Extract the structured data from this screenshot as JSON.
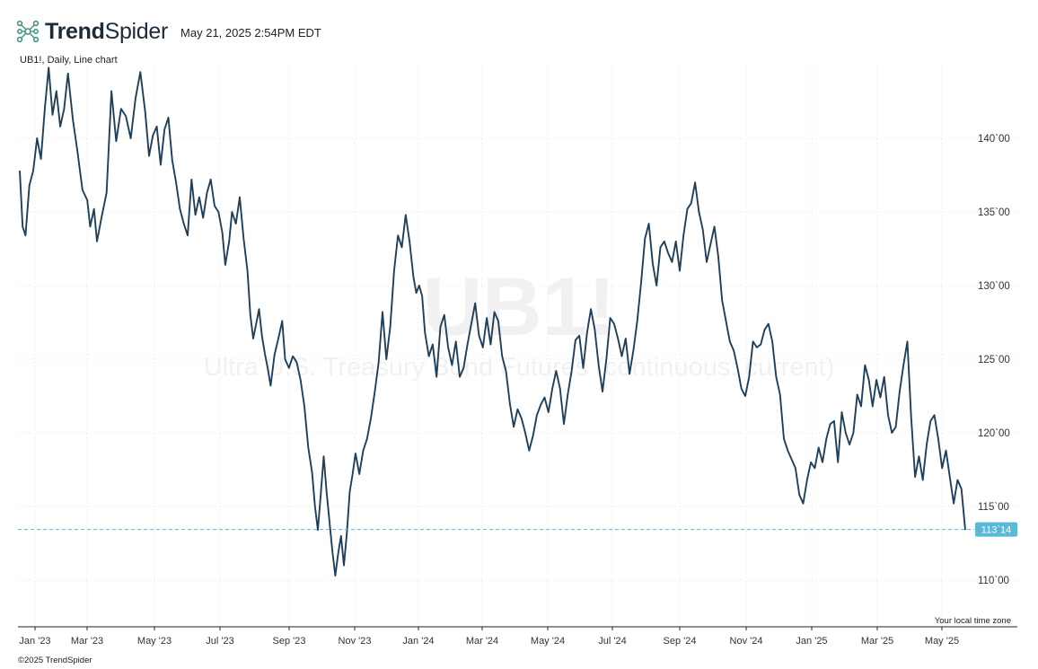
{
  "header": {
    "brand_bold": "Trend",
    "brand_light": "Spider",
    "timestamp": "May 21, 2025 2:54PM EDT",
    "logo_icon": "trendspider-network-icon"
  },
  "subtitle": "UB1!, Daily, Line chart",
  "footer": {
    "copyright": "©2025 TrendSpider",
    "timezone_note": "Your local time zone"
  },
  "watermark": {
    "symbol": "UB1!",
    "description": "Ultra U.S. Treasury Bond Futures (continuous: current)"
  },
  "colors": {
    "line": "#1f3f5b",
    "last_price": "#5bb8d6",
    "grid": "#e6e6e6",
    "axis": "#222222"
  },
  "chart_data": {
    "type": "line",
    "symbol": "UB1!",
    "interval": "Daily",
    "x_tick_labels": [
      "Jan '23",
      "Mar '23",
      "May '23",
      "Jul '23",
      "Sep '23",
      "Nov '23",
      "Jan '24",
      "Mar '24",
      "May '24",
      "Jul '24",
      "Sep '24",
      "Nov '24",
      "Jan '25",
      "Mar '25",
      "May '25"
    ],
    "y_tick_labels": [
      "110`00",
      "115`00",
      "120`00",
      "125`00",
      "130`00",
      "135`00",
      "140`00"
    ],
    "y_tick_values": [
      110,
      115,
      120,
      125,
      130,
      135,
      140
    ],
    "ylim": [
      108,
      146
    ],
    "last_price_label": "113`14",
    "last_price_value": 113.44,
    "series": [
      {
        "values": [
          [
            0.0,
            137.8
          ],
          [
            0.3,
            134.0
          ],
          [
            0.6,
            133.4
          ],
          [
            1.0,
            136.8
          ],
          [
            1.4,
            137.8
          ],
          [
            1.8,
            140.0
          ],
          [
            2.2,
            138.6
          ],
          [
            2.6,
            142.0
          ],
          [
            3.0,
            144.8
          ],
          [
            3.4,
            141.6
          ],
          [
            3.8,
            143.2
          ],
          [
            4.2,
            140.8
          ],
          [
            4.6,
            142.0
          ],
          [
            5.0,
            144.4
          ],
          [
            5.5,
            141.3
          ],
          [
            6.0,
            139.0
          ],
          [
            6.5,
            136.5
          ],
          [
            7.0,
            135.8
          ],
          [
            7.3,
            134.0
          ],
          [
            7.7,
            135.2
          ],
          [
            8.0,
            133.0
          ],
          [
            8.5,
            134.7
          ],
          [
            9.0,
            136.3
          ],
          [
            9.5,
            143.2
          ],
          [
            10.0,
            139.8
          ],
          [
            10.5,
            142.0
          ],
          [
            11.0,
            141.5
          ],
          [
            11.5,
            140.0
          ],
          [
            12.0,
            142.7
          ],
          [
            12.5,
            144.5
          ],
          [
            13.0,
            141.8
          ],
          [
            13.4,
            138.8
          ],
          [
            13.8,
            140.2
          ],
          [
            14.2,
            140.8
          ],
          [
            14.6,
            138.2
          ],
          [
            15.0,
            140.6
          ],
          [
            15.4,
            141.4
          ],
          [
            15.8,
            138.5
          ],
          [
            16.2,
            137.0
          ],
          [
            16.6,
            135.2
          ],
          [
            17.0,
            134.2
          ],
          [
            17.4,
            133.4
          ],
          [
            17.8,
            137.2
          ],
          [
            18.2,
            134.8
          ],
          [
            18.6,
            136.0
          ],
          [
            19.0,
            134.6
          ],
          [
            19.4,
            136.3
          ],
          [
            19.8,
            137.2
          ],
          [
            20.2,
            135.4
          ],
          [
            20.6,
            135.0
          ],
          [
            21.0,
            133.6
          ],
          [
            21.3,
            131.4
          ],
          [
            21.7,
            133.0
          ],
          [
            22.0,
            135.0
          ],
          [
            22.4,
            134.2
          ],
          [
            22.8,
            136.0
          ],
          [
            23.2,
            133.2
          ],
          [
            23.6,
            131.0
          ],
          [
            23.9,
            128.0
          ],
          [
            24.2,
            126.4
          ],
          [
            24.5,
            127.4
          ],
          [
            24.8,
            128.4
          ],
          [
            25.1,
            126.6
          ],
          [
            25.4,
            125.4
          ],
          [
            25.7,
            124.4
          ],
          [
            26.0,
            123.2
          ],
          [
            26.4,
            125.3
          ],
          [
            26.8,
            126.4
          ],
          [
            27.2,
            127.6
          ],
          [
            27.5,
            125.0
          ],
          [
            27.9,
            124.4
          ],
          [
            28.3,
            125.2
          ],
          [
            28.7,
            124.8
          ],
          [
            29.1,
            123.6
          ],
          [
            29.5,
            121.8
          ],
          [
            29.9,
            119.0
          ],
          [
            30.3,
            117.3
          ],
          [
            30.6,
            115.0
          ],
          [
            30.9,
            113.4
          ],
          [
            31.2,
            115.8
          ],
          [
            31.5,
            118.4
          ],
          [
            31.8,
            116.0
          ],
          [
            32.1,
            114.0
          ],
          [
            32.4,
            112.0
          ],
          [
            32.7,
            110.3
          ],
          [
            33.0,
            111.8
          ],
          [
            33.3,
            113.0
          ],
          [
            33.6,
            111.0
          ],
          [
            33.9,
            113.2
          ],
          [
            34.2,
            116.0
          ],
          [
            34.5,
            117.2
          ],
          [
            34.8,
            118.6
          ],
          [
            35.2,
            117.2
          ],
          [
            35.6,
            118.8
          ],
          [
            36.0,
            119.6
          ],
          [
            36.4,
            121.0
          ],
          [
            36.8,
            122.8
          ],
          [
            37.2,
            124.8
          ],
          [
            37.6,
            128.2
          ],
          [
            38.0,
            125.0
          ],
          [
            38.4,
            127.2
          ],
          [
            38.8,
            131.0
          ],
          [
            39.2,
            133.4
          ],
          [
            39.6,
            132.6
          ],
          [
            40.0,
            134.8
          ],
          [
            40.4,
            133.0
          ],
          [
            40.8,
            130.6
          ],
          [
            41.1,
            129.5
          ],
          [
            41.4,
            130.0
          ],
          [
            41.7,
            129.3
          ],
          [
            42.0,
            126.8
          ],
          [
            42.4,
            125.2
          ],
          [
            42.8,
            126.0
          ],
          [
            43.2,
            123.8
          ],
          [
            43.6,
            127.2
          ],
          [
            44.0,
            128.0
          ],
          [
            44.4,
            125.8
          ],
          [
            44.8,
            124.6
          ],
          [
            45.2,
            126.2
          ],
          [
            45.6,
            123.8
          ],
          [
            46.0,
            124.4
          ],
          [
            46.4,
            126.0
          ],
          [
            46.8,
            127.4
          ],
          [
            47.2,
            128.8
          ],
          [
            47.6,
            126.6
          ],
          [
            48.0,
            125.8
          ],
          [
            48.4,
            127.8
          ],
          [
            48.8,
            126.0
          ],
          [
            49.2,
            128.2
          ],
          [
            49.6,
            127.6
          ],
          [
            50.0,
            125.2
          ],
          [
            50.4,
            124.2
          ],
          [
            50.8,
            122.0
          ],
          [
            51.2,
            120.4
          ],
          [
            51.6,
            121.6
          ],
          [
            52.0,
            121.0
          ],
          [
            52.4,
            120.0
          ],
          [
            52.8,
            118.8
          ],
          [
            53.2,
            119.8
          ],
          [
            53.6,
            121.2
          ],
          [
            54.0,
            121.9
          ],
          [
            54.4,
            122.4
          ],
          [
            54.8,
            121.4
          ],
          [
            55.2,
            123.0
          ],
          [
            55.6,
            124.2
          ],
          [
            56.0,
            123.0
          ],
          [
            56.4,
            120.6
          ],
          [
            56.8,
            122.6
          ],
          [
            57.2,
            124.2
          ],
          [
            57.6,
            126.3
          ],
          [
            58.0,
            126.6
          ],
          [
            58.4,
            124.4
          ],
          [
            58.8,
            126.8
          ],
          [
            59.2,
            128.4
          ],
          [
            59.6,
            127.0
          ],
          [
            60.0,
            124.6
          ],
          [
            60.4,
            122.8
          ],
          [
            60.8,
            125.0
          ],
          [
            61.2,
            127.8
          ],
          [
            61.6,
            127.4
          ],
          [
            62.0,
            126.4
          ],
          [
            62.4,
            125.2
          ],
          [
            62.8,
            126.4
          ],
          [
            63.2,
            124.0
          ],
          [
            63.6,
            125.6
          ],
          [
            64.0,
            127.6
          ],
          [
            64.4,
            130.2
          ],
          [
            64.8,
            133.2
          ],
          [
            65.2,
            134.2
          ],
          [
            65.6,
            131.5
          ],
          [
            66.0,
            130.0
          ],
          [
            66.4,
            132.6
          ],
          [
            66.8,
            133.0
          ],
          [
            67.2,
            132.2
          ],
          [
            67.6,
            131.6
          ],
          [
            68.0,
            133.0
          ],
          [
            68.4,
            131.0
          ],
          [
            68.8,
            133.4
          ],
          [
            69.2,
            135.2
          ],
          [
            69.6,
            135.6
          ],
          [
            70.0,
            137.0
          ],
          [
            70.4,
            135.0
          ],
          [
            70.8,
            133.8
          ],
          [
            71.2,
            131.6
          ],
          [
            71.6,
            132.8
          ],
          [
            72.0,
            134.0
          ],
          [
            72.4,
            132.0
          ],
          [
            72.8,
            129.0
          ],
          [
            73.2,
            127.6
          ],
          [
            73.6,
            126.2
          ],
          [
            74.0,
            125.6
          ],
          [
            74.4,
            124.4
          ],
          [
            74.8,
            123.0
          ],
          [
            75.2,
            122.5
          ],
          [
            75.6,
            123.8
          ],
          [
            76.0,
            126.2
          ],
          [
            76.4,
            125.8
          ],
          [
            76.8,
            126.0
          ],
          [
            77.2,
            127.0
          ],
          [
            77.6,
            127.4
          ],
          [
            78.0,
            126.2
          ],
          [
            78.4,
            123.8
          ],
          [
            78.8,
            122.6
          ],
          [
            79.2,
            119.6
          ],
          [
            79.6,
            118.8
          ],
          [
            80.0,
            118.2
          ],
          [
            80.4,
            117.6
          ],
          [
            80.8,
            115.8
          ],
          [
            81.2,
            115.2
          ],
          [
            81.6,
            116.8
          ],
          [
            82.0,
            118.0
          ],
          [
            82.4,
            117.6
          ],
          [
            82.8,
            119.0
          ],
          [
            83.2,
            118.0
          ],
          [
            83.6,
            119.6
          ],
          [
            84.0,
            120.6
          ],
          [
            84.4,
            120.8
          ],
          [
            84.8,
            118.0
          ],
          [
            85.2,
            121.4
          ],
          [
            85.6,
            120.0
          ],
          [
            86.0,
            119.2
          ],
          [
            86.4,
            120.0
          ],
          [
            86.8,
            122.6
          ],
          [
            87.2,
            121.8
          ],
          [
            87.6,
            124.6
          ],
          [
            88.0,
            123.6
          ],
          [
            88.4,
            121.8
          ],
          [
            88.8,
            123.6
          ],
          [
            89.2,
            122.4
          ],
          [
            89.6,
            123.8
          ],
          [
            90.0,
            121.2
          ],
          [
            90.4,
            120.0
          ],
          [
            90.8,
            120.4
          ],
          [
            91.2,
            122.8
          ],
          [
            91.6,
            124.6
          ],
          [
            92.0,
            126.2
          ],
          [
            92.4,
            121.0
          ],
          [
            92.8,
            117.0
          ],
          [
            93.2,
            118.4
          ],
          [
            93.6,
            116.8
          ],
          [
            94.0,
            119.2
          ],
          [
            94.4,
            120.8
          ],
          [
            94.8,
            121.2
          ],
          [
            95.2,
            119.6
          ],
          [
            95.6,
            117.6
          ],
          [
            96.0,
            118.8
          ],
          [
            96.4,
            117.0
          ],
          [
            96.8,
            115.2
          ],
          [
            97.2,
            116.8
          ],
          [
            97.6,
            116.2
          ],
          [
            98.0,
            113.4
          ]
        ]
      }
    ]
  }
}
